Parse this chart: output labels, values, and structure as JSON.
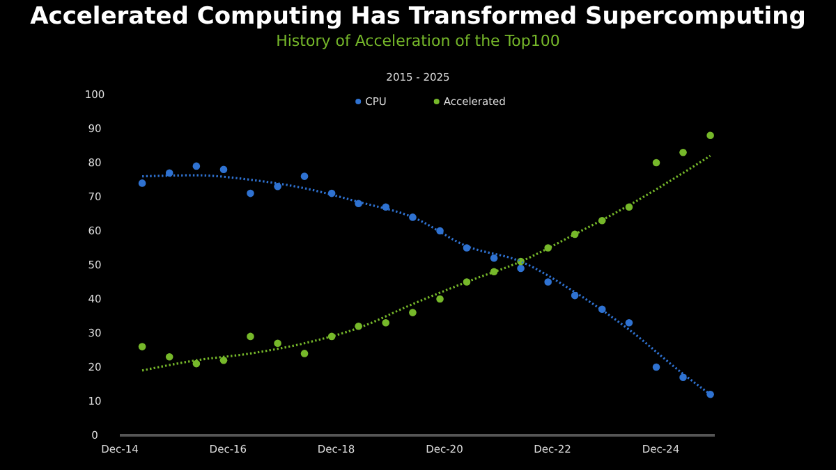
{
  "chart_data": {
    "type": "scatter",
    "title": "Accelerated Computing Has Transformed Supercomputing",
    "subtitle": "History of Acceleration of the Top100",
    "annotations": [
      "2015 - 2025"
    ],
    "x": [
      "2015-05",
      "2015-11",
      "2016-05",
      "2016-11",
      "2017-05",
      "2017-11",
      "2018-05",
      "2018-11",
      "2019-05",
      "2019-11",
      "2020-05",
      "2020-11",
      "2021-05",
      "2021-11",
      "2022-05",
      "2022-11",
      "2023-05",
      "2023-11",
      "2024-05",
      "2024-11",
      "2025-05",
      "2025-11"
    ],
    "series": [
      {
        "name": "CPU",
        "color": "#2f72d1",
        "values": [
          74,
          77,
          79,
          78,
          71,
          73,
          76,
          71,
          68,
          67,
          64,
          60,
          55,
          52,
          49,
          45,
          41,
          37,
          33,
          20,
          17,
          12
        ]
      },
      {
        "name": "Accelerated",
        "color": "#76b82a",
        "values": [
          26,
          23,
          21,
          22,
          29,
          27,
          24,
          29,
          32,
          33,
          36,
          40,
          45,
          48,
          51,
          55,
          59,
          63,
          67,
          80,
          83,
          88
        ]
      },
      {
        "type": "line",
        "marker": "none",
        "color": "#2f72d1",
        "x": [
          "2015-05",
          "2016-05",
          "2017-05",
          "2018-05",
          "2019-05",
          "2020-05",
          "2021-05",
          "2022-05",
          "2023-05",
          "2024-05",
          "2025-05",
          "2025-11"
        ],
        "values": [
          76,
          76.3,
          75,
          72.5,
          68.5,
          64,
          55.5,
          51,
          42,
          31,
          18,
          12
        ]
      },
      {
        "type": "line",
        "marker": "none",
        "color": "#76b82a",
        "x": [
          "2015-05",
          "2016-05",
          "2017-05",
          "2018-05",
          "2019-05",
          "2020-05",
          "2021-05",
          "2022-05",
          "2023-05",
          "2024-05",
          "2025-05",
          "2025-11"
        ],
        "values": [
          19,
          22,
          24,
          27,
          31.5,
          38.5,
          45,
          51,
          59,
          67.5,
          77,
          82
        ]
      }
    ],
    "xlim": [
      "2014-12",
      "2025-12"
    ],
    "xticks": [
      {
        "value": "2014-12",
        "label": "Dec-14"
      },
      {
        "value": "2016-12",
        "label": "Dec-16"
      },
      {
        "value": "2018-12",
        "label": "Dec-18"
      },
      {
        "value": "2020-12",
        "label": "Dec-20"
      },
      {
        "value": "2022-12",
        "label": "Dec-22"
      },
      {
        "value": "2024-12",
        "label": "Dec-24"
      }
    ],
    "ylim": [
      0,
      100
    ],
    "yticks": [
      0,
      10,
      20,
      30,
      40,
      50,
      60,
      70,
      80,
      90,
      100
    ],
    "grid": false,
    "legend": "top",
    "marker": "circle",
    "line_style": "dotted"
  }
}
